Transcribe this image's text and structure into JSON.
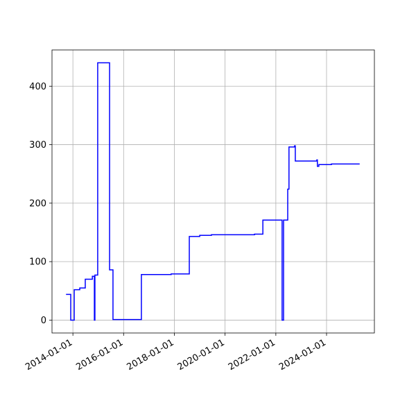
{
  "chart_data": {
    "type": "step",
    "x": [
      "2013-09-24",
      "2013-12-01",
      "2014-01-20",
      "2014-04-10",
      "2014-06-28",
      "2014-10-08",
      "2014-11-06",
      "2014-11-14",
      "2014-12-24",
      "2015-06-13",
      "2015-08-01",
      "2016-09-13",
      "2017-11-16",
      "2018-08-04",
      "2019-01-01",
      "2019-06-18",
      "2021-02-28",
      "2021-06-28",
      "2022-04-01",
      "2022-04-22",
      "2022-06-21",
      "2022-07-09",
      "2022-09-27",
      "2022-10-08",
      "2023-08-14",
      "2023-08-22",
      "2023-09-12",
      "2024-03-11",
      "2025-04-22"
    ],
    "series": [
      {
        "color": "#0000ff",
        "values": [
          44,
          0,
          52,
          55,
          70,
          75,
          0,
          77,
          440,
          86,
          1,
          78,
          79,
          143,
          145,
          146,
          147,
          171,
          0,
          171,
          224,
          296,
          298,
          272,
          274,
          263,
          266,
          267,
          267
        ]
      }
    ],
    "xlim": [
      "2013-03-06",
      "2025-11-20"
    ],
    "xticks": [
      "2014-01-01",
      "2016-01-01",
      "2018-01-01",
      "2020-01-01",
      "2022-01-01",
      "2024-01-01"
    ],
    "ylim": [
      -22,
      462
    ],
    "yticks": [
      0,
      100,
      200,
      300,
      400
    ],
    "grid": true
  }
}
